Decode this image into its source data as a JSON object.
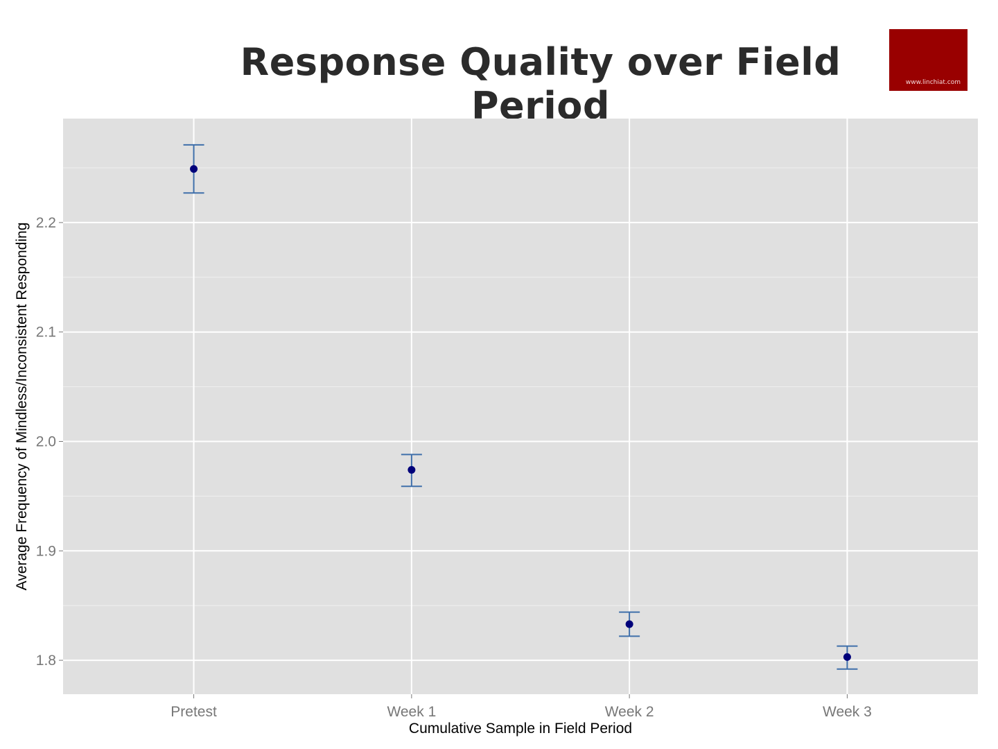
{
  "logo": {
    "text": "www.linchiat.com",
    "color": "#990000"
  },
  "chart_data": {
    "type": "scatter",
    "title": "Response Quality over Field Period",
    "xlabel": "Cumulative Sample in Field Period",
    "ylabel": "Average Frequency of Mindless/Inconsistent Responding",
    "categories": [
      "Pretest",
      "Week 1",
      "Week 2",
      "Week 3"
    ],
    "values": [
      2.249,
      1.974,
      1.833,
      1.803
    ],
    "error_low": [
      2.227,
      1.959,
      1.822,
      1.792
    ],
    "error_high": [
      2.271,
      1.988,
      1.844,
      1.813
    ],
    "ylim": [
      1.769,
      2.295
    ],
    "yticks": [
      "1.8",
      "1.9",
      "2.0",
      "2.1",
      "2.2"
    ],
    "ytick_values": [
      1.8,
      1.9,
      2.0,
      2.1,
      2.2
    ],
    "grid": true,
    "legend": "none",
    "colors": {
      "panel": "#e0e0e0",
      "grid": "#ffffff",
      "point": "#00007a",
      "errorbar": "#3f6faa"
    }
  }
}
